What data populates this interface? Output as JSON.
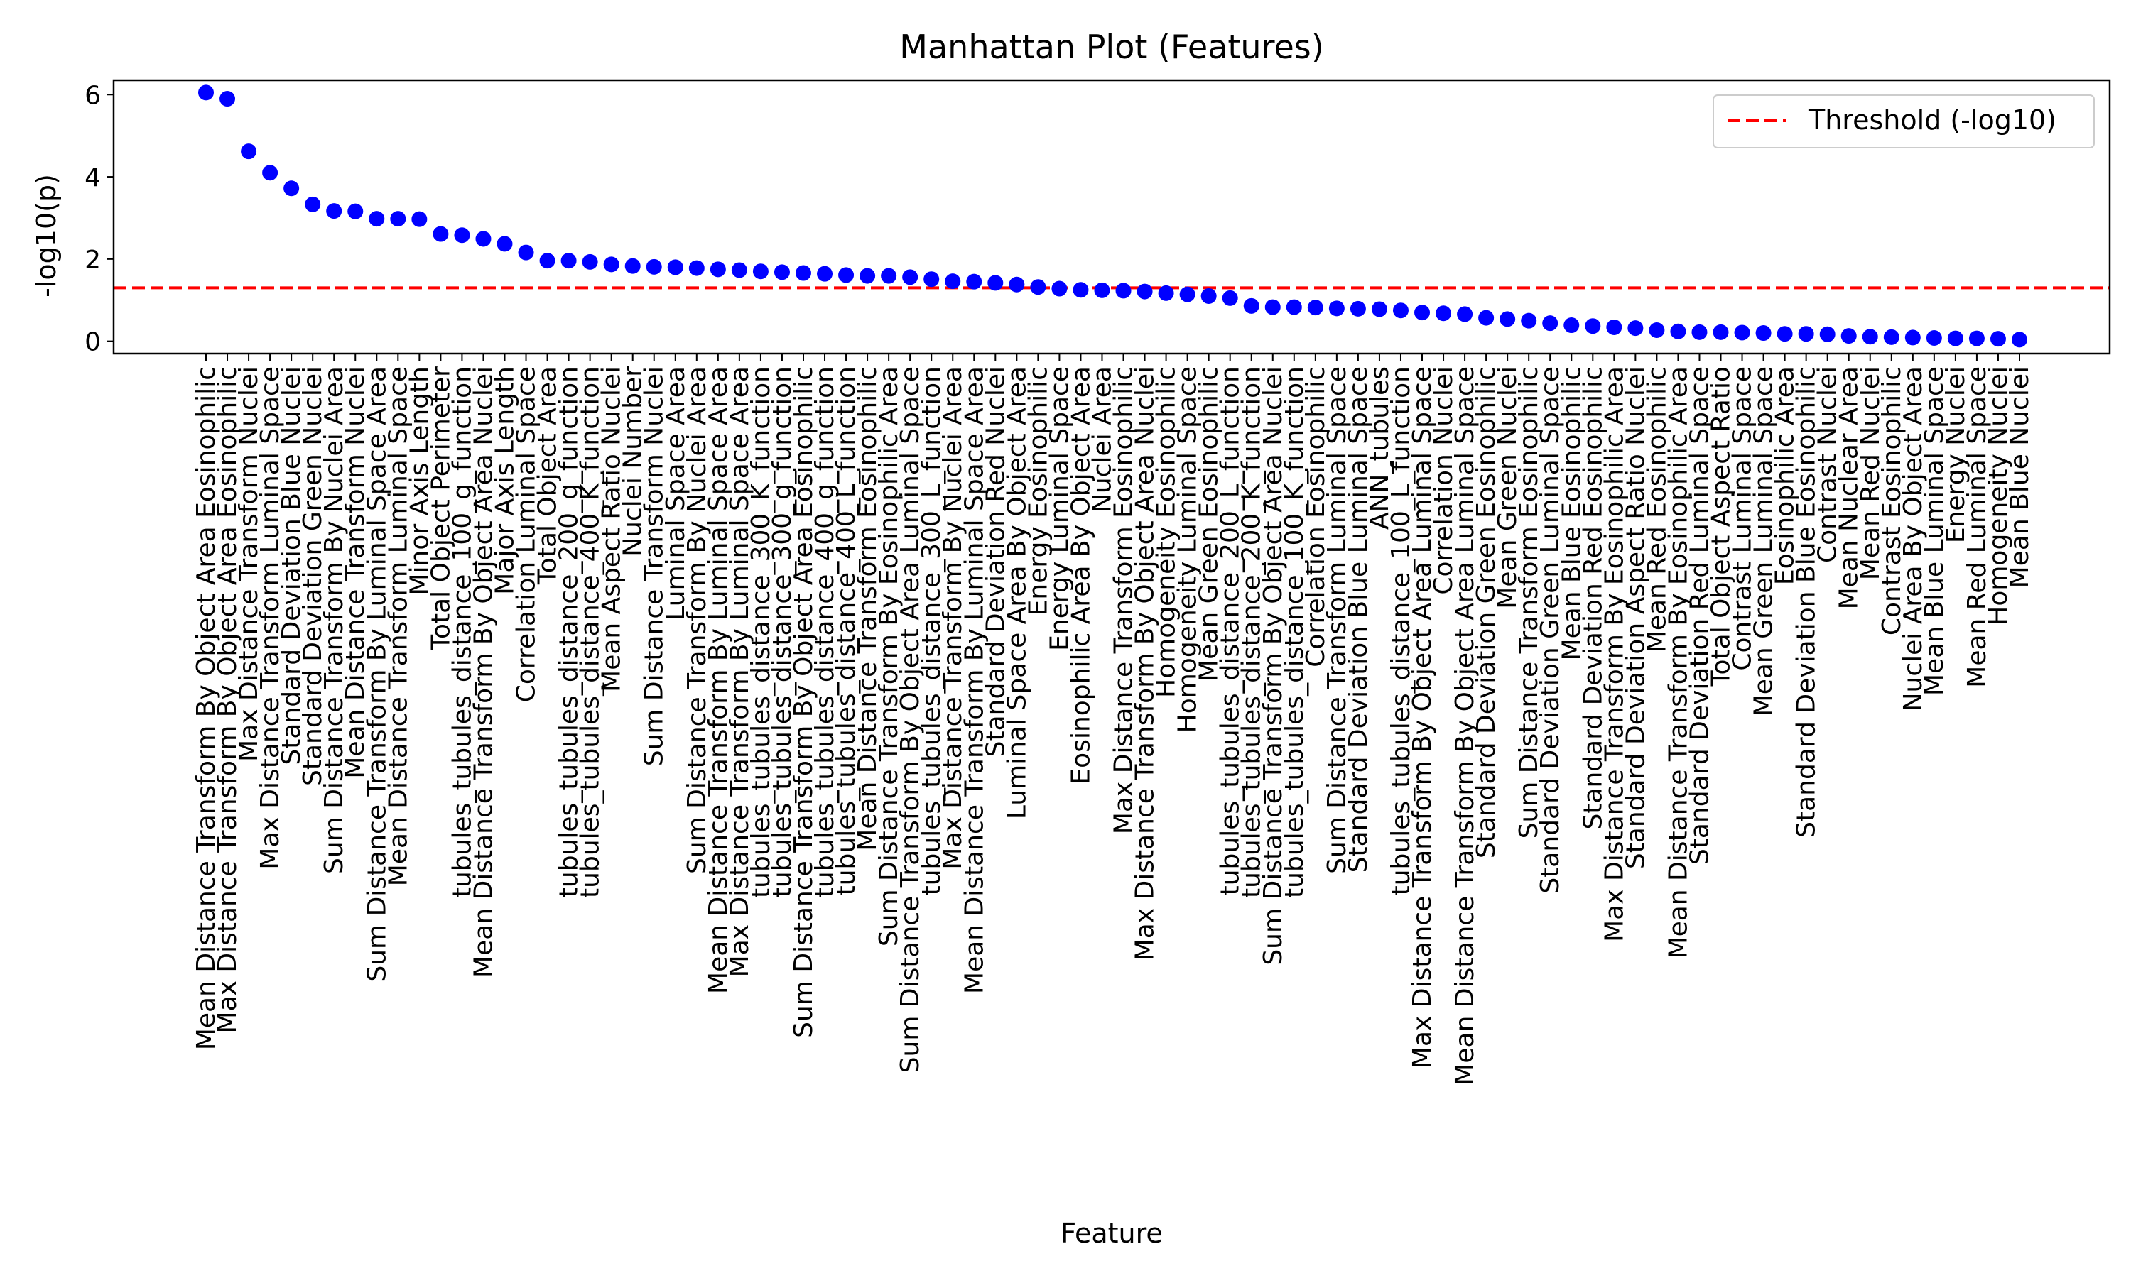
{
  "chart_data": {
    "type": "scatter",
    "title": "Manhattan Plot (Features)",
    "xlabel": "Feature",
    "ylabel": "-log10(p)",
    "ylim": [
      -0.3,
      6.35
    ],
    "yticks": [
      0,
      2,
      4,
      6
    ],
    "grid": false,
    "legend_position": "top-right",
    "colors": {
      "points": "#0000ff",
      "threshold": "#ff0000"
    },
    "threshold": {
      "name": "Threshold (-log10)",
      "value": 1.3
    },
    "categories": [
      "Mean Distance Transform By Object Area Eosinophilic",
      "Max Distance Transform By Object Area Eosinophilic",
      "Max Distance Transform Nuclei",
      "Max Distance Transform Luminal Space",
      "Standard Deviation Blue Nuclei",
      "Standard Deviation Green Nuclei",
      "Sum Distance Transform By Nuclei Area",
      "Mean Distance Transform Nuclei",
      "Sum Distance Transform By Luminal Space Area",
      "Mean Distance Transform Luminal Space",
      "Minor Axis Length",
      "Total Object Perimeter",
      "tubules_tubules_distance_100_g_function",
      "Mean Distance Transform By Object Area Nuclei",
      "Major Axis Length",
      "Correlation Luminal Space",
      "Total Object Area",
      "tubules_tubules_distance_200_g_function",
      "tubules_tubules_distance_400_K_function",
      "Mean Aspect Ratio Nuclei",
      "Nuclei Number",
      "Sum Distance Transform Nuclei",
      "Luminal Space Area",
      "Sum Distance Transform By Nuclei Area",
      "Mean Distance Transform By Luminal Space Area",
      "Max Distance Transform By Luminal Space Area",
      "tubules_tubules_distance_300_K_function",
      "tubules_tubules_distance_300_g_function",
      "Sum Distance Transform By Object Area Eosinophilic",
      "tubules_tubules_distance_400_g_function",
      "tubules_tubules_distance_400_L_function",
      "Mean Distance Transform Eosinophilic",
      "Sum Distance Transform By Eosinophilic Area",
      "Sum Distance Transform By Object Area Luminal Space",
      "tubules_tubules_distance_300_L_function",
      "Max Distance Transform By Nuclei Area",
      "Mean Distance Transform By Luminal Space Area",
      "Standard Deviation Red Nuclei",
      "Luminal Space Area By Object Area",
      "Energy Eosinophilic",
      "Energy Luminal Space",
      "Eosinophilic Area By Object Area",
      "Nuclei Area",
      "Max Distance Transform Eosinophilic",
      "Max Distance Transform By Object Area Nuclei",
      "Homogeneity Eosinophilic",
      "Homogeneity Luminal Space",
      "Mean Green Eosinophilic",
      "tubules_tubules_distance_200_L_function",
      "tubules_tubules_distance_200_K_function",
      "Sum Distance Transform By Object Area Nuclei",
      "tubules_tubules_distance_100_K_function",
      "Correlation Eosinophilic",
      "Sum Distance Transform Luminal Space",
      "Standard Deviation Blue Luminal Space",
      "ANN_tubules",
      "tubules_tubules_distance_100_L_function",
      "Max Distance Transform By Object Area Luminal Space",
      "Correlation Nuclei",
      "Mean Distance Transform By Object Area Luminal Space",
      "Standard Deviation Green Eosinophilic",
      "Mean Green Nuclei",
      "Sum Distance Transform Eosinophilic",
      "Standard Deviation Green Luminal Space",
      "Mean Blue Eosinophilic",
      "Standard Deviation Red Eosinophilic",
      "Max Distance Transform By Eosinophilic Area",
      "Standard Deviation Aspect Ratio Nuclei",
      "Mean Red Eosinophilic",
      "Mean Distance Transform By Eosinophilic Area",
      "Standard Deviation Red Luminal Space",
      "Total Object Aspect Ratio",
      "Contrast Luminal Space",
      "Mean Green Luminal Space",
      "Eosinophilic Area",
      "Standard Deviation Blue Eosinophilic",
      "Contrast Nuclei",
      "Mean Nuclear Area",
      "Mean Red Nuclei",
      "Contrast Eosinophilic",
      "Nuclei Area By Object Area",
      "Mean Blue Luminal Space",
      "Energy Nuclei",
      "Mean Red Luminal Space",
      "Homogeneity Nuclei",
      "Mean Blue Nuclei"
    ],
    "values": [
      6.05,
      5.9,
      4.62,
      4.1,
      3.72,
      3.33,
      3.17,
      3.16,
      2.98,
      2.98,
      2.97,
      2.61,
      2.58,
      2.49,
      2.37,
      2.16,
      1.96,
      1.96,
      1.93,
      1.87,
      1.83,
      1.81,
      1.8,
      1.78,
      1.75,
      1.73,
      1.7,
      1.68,
      1.66,
      1.64,
      1.61,
      1.59,
      1.59,
      1.56,
      1.51,
      1.46,
      1.45,
      1.42,
      1.38,
      1.32,
      1.28,
      1.25,
      1.24,
      1.23,
      1.21,
      1.17,
      1.14,
      1.1,
      1.05,
      0.86,
      0.83,
      0.83,
      0.82,
      0.8,
      0.79,
      0.78,
      0.75,
      0.7,
      0.68,
      0.66,
      0.57,
      0.54,
      0.5,
      0.44,
      0.39,
      0.37,
      0.34,
      0.32,
      0.27,
      0.24,
      0.22,
      0.22,
      0.21,
      0.2,
      0.18,
      0.18,
      0.17,
      0.13,
      0.11,
      0.1,
      0.09,
      0.08,
      0.07,
      0.07,
      0.06,
      0.04
    ]
  }
}
